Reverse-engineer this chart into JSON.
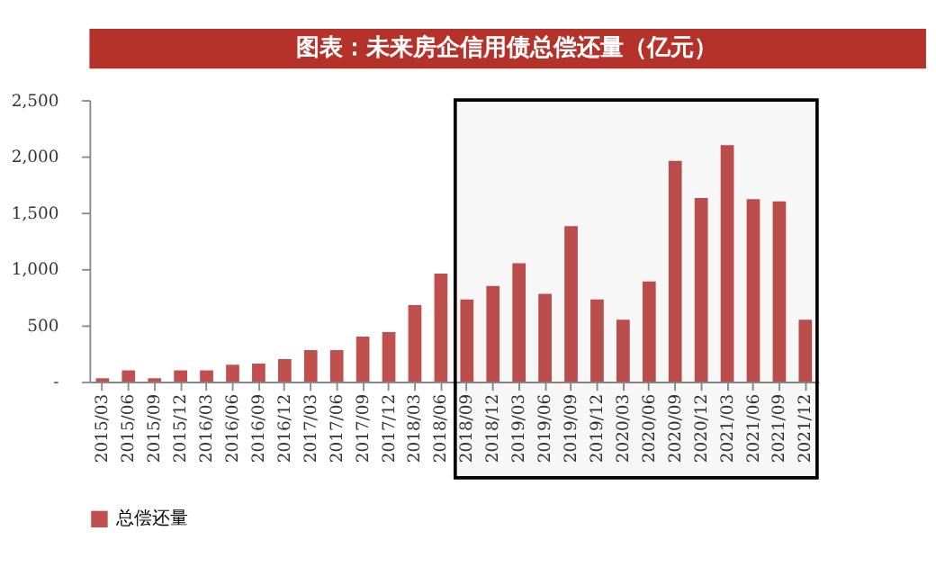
{
  "chart_data": {
    "type": "bar",
    "title": "图表：未来房企信用债总偿还量（亿元）",
    "categories": [
      "2015/03",
      "2015/06",
      "2015/09",
      "2015/12",
      "2016/03",
      "2016/06",
      "2016/09",
      "2016/12",
      "2017/03",
      "2017/06",
      "2017/09",
      "2017/12",
      "2018/03",
      "2018/06",
      "2018/09",
      "2018/12",
      "2019/03",
      "2019/06",
      "2019/09",
      "2019/12",
      "2020/03",
      "2020/06",
      "2020/09",
      "2020/12",
      "2021/03",
      "2021/06",
      "2021/09",
      "2021/12"
    ],
    "series": [
      {
        "name": "总偿还量",
        "color": "#c0504d",
        "values": [
          30,
          100,
          30,
          100,
          100,
          150,
          160,
          200,
          280,
          280,
          400,
          440,
          680,
          960,
          730,
          850,
          1050,
          780,
          1380,
          730,
          550,
          890,
          1960,
          1630,
          2100,
          1620,
          1600,
          550
        ]
      }
    ],
    "ylim": [
      0,
      2500
    ],
    "yticks": [
      {
        "value": 0,
        "label": "-"
      },
      {
        "value": 500,
        "label": "500"
      },
      {
        "value": 1000,
        "label": "1,000"
      },
      {
        "value": 1500,
        "label": "1,500"
      },
      {
        "value": 2000,
        "label": "2,000"
      },
      {
        "value": 2500,
        "label": "2,500"
      }
    ],
    "bands": [
      {
        "axis": "x",
        "from": "2018/09",
        "to": "2021/12",
        "color": "#000000"
      }
    ],
    "grid": false,
    "legend": "bottom"
  }
}
